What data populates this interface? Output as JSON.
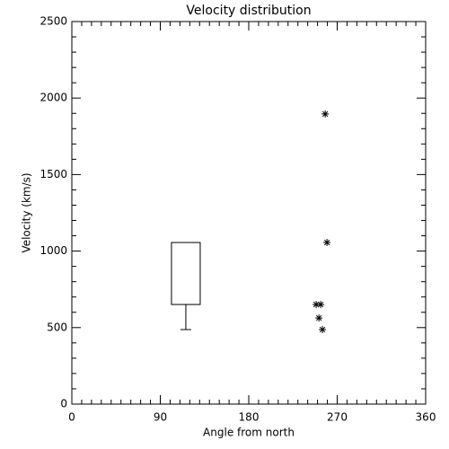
{
  "chart_data": {
    "type": "scatter",
    "title": "Velocity distribution",
    "x_label": "Angle from north",
    "y_label": "Velocity (km/s)",
    "x": [
      257.8,
      259.6,
      248.6,
      253.2,
      251.4,
      255
    ],
    "values": [
      1896,
      1056,
      651,
      651,
      563,
      487
    ],
    "color": "#000000",
    "box": {
      "x": 116,
      "whisker_low": 487,
      "q1": 651,
      "q3": 1056
    },
    "xlim": [
      0,
      360
    ],
    "xticks": [
      0,
      90,
      180,
      270,
      360
    ],
    "ylim": [
      0,
      2500
    ],
    "yticks": [
      0,
      500,
      1000,
      1500,
      2000,
      2500
    ],
    "xminorticks": [
      10,
      20,
      30,
      40,
      50,
      60,
      70,
      80,
      100,
      110,
      120,
      130,
      140,
      150,
      160,
      170,
      190,
      200,
      210,
      220,
      230,
      240,
      250,
      260,
      280,
      290,
      300,
      310,
      320,
      330,
      340,
      350
    ],
    "yminorticks": [
      100,
      200,
      300,
      400,
      600,
      700,
      800,
      900,
      1100,
      1200,
      1300,
      1400,
      1600,
      1700,
      1800,
      1900,
      2100,
      2200,
      2300,
      2400
    ]
  }
}
